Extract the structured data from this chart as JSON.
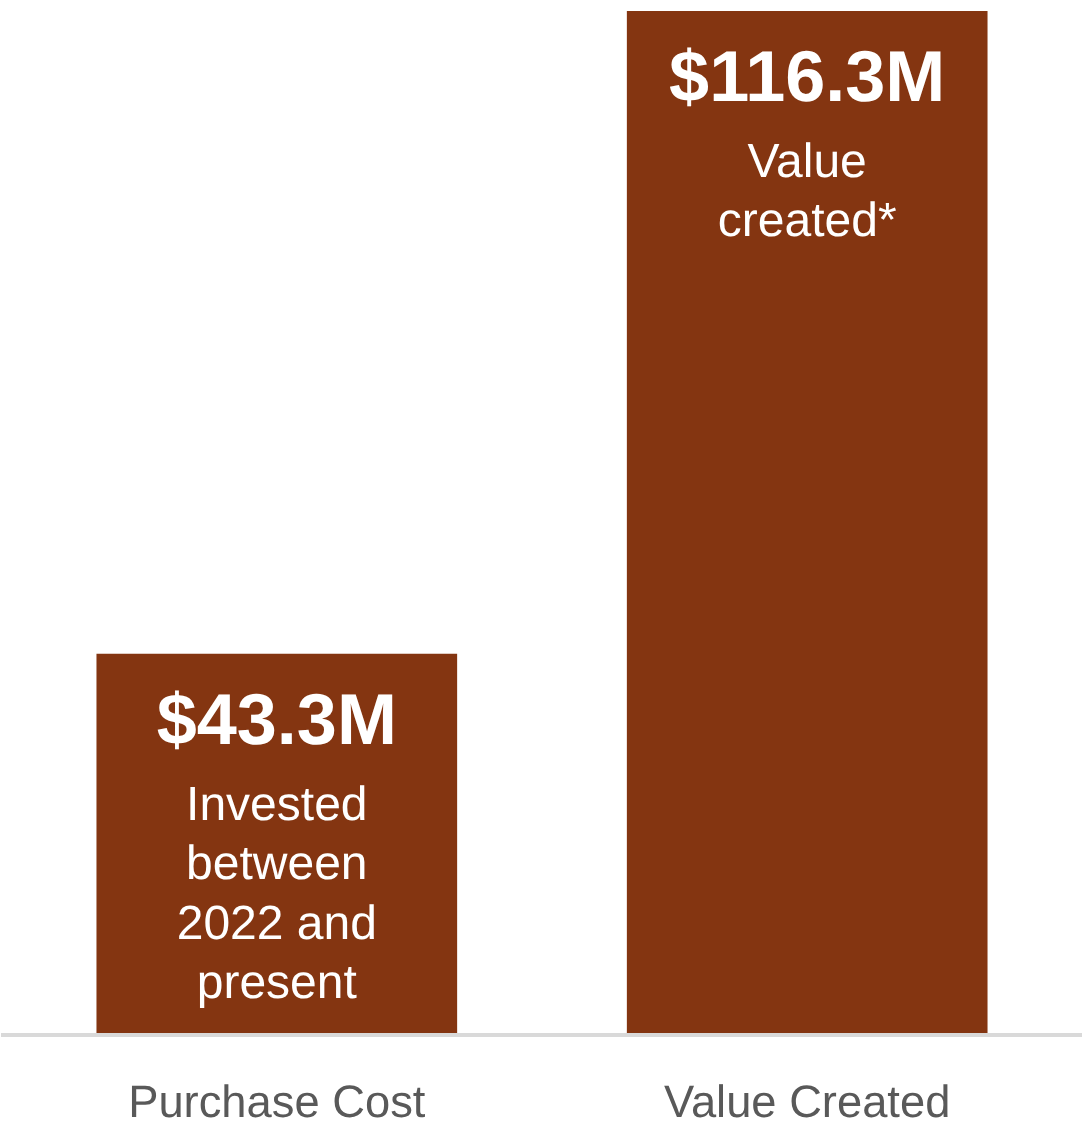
{
  "chart_data": {
    "type": "bar",
    "categories": [
      "Purchase Cost",
      "Value Created"
    ],
    "values": [
      43.3,
      116.3
    ],
    "color": "#843511",
    "value_labels": [
      "$43.3M",
      "$116.3M"
    ],
    "annotations": [
      "Invested between 2022 and present",
      "Value created*"
    ]
  }
}
